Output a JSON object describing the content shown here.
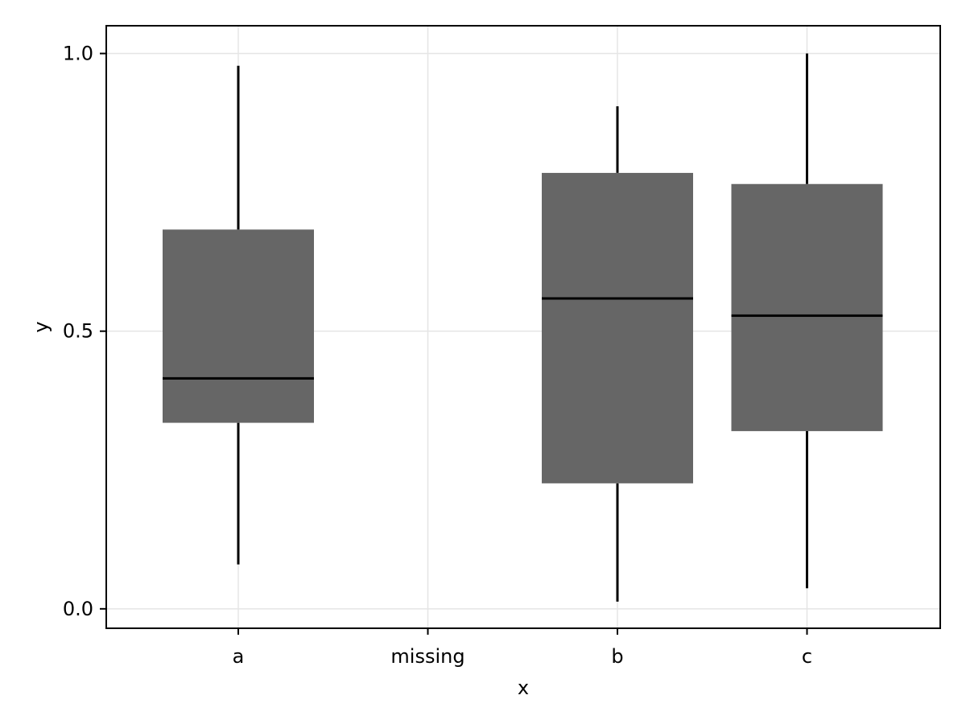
{
  "chart_data": {
    "type": "box",
    "xlabel": "x",
    "ylabel": "y",
    "categories": [
      "a",
      "missing",
      "b",
      "c"
    ],
    "ylim": [
      -0.035,
      1.05
    ],
    "yticks": [
      0.0,
      0.5,
      1.0
    ],
    "ytick_labels": [
      "0.0",
      "0.5",
      "1.0"
    ],
    "grid": true,
    "box_color": "#666666",
    "line_color": "#000000",
    "grid_color": "#e5e5e5",
    "boxes": [
      {
        "category": "a",
        "whisker_low": 0.08,
        "q1": 0.335,
        "median": 0.415,
        "q3": 0.683,
        "whisker_high": 0.978
      },
      {
        "category": "b",
        "whisker_low": 0.013,
        "q1": 0.226,
        "median": 0.559,
        "q3": 0.785,
        "whisker_high": 0.905
      },
      {
        "category": "c",
        "whisker_low": 0.037,
        "q1": 0.32,
        "median": 0.528,
        "q3": 0.765,
        "whisker_high": 1.0
      }
    ]
  }
}
